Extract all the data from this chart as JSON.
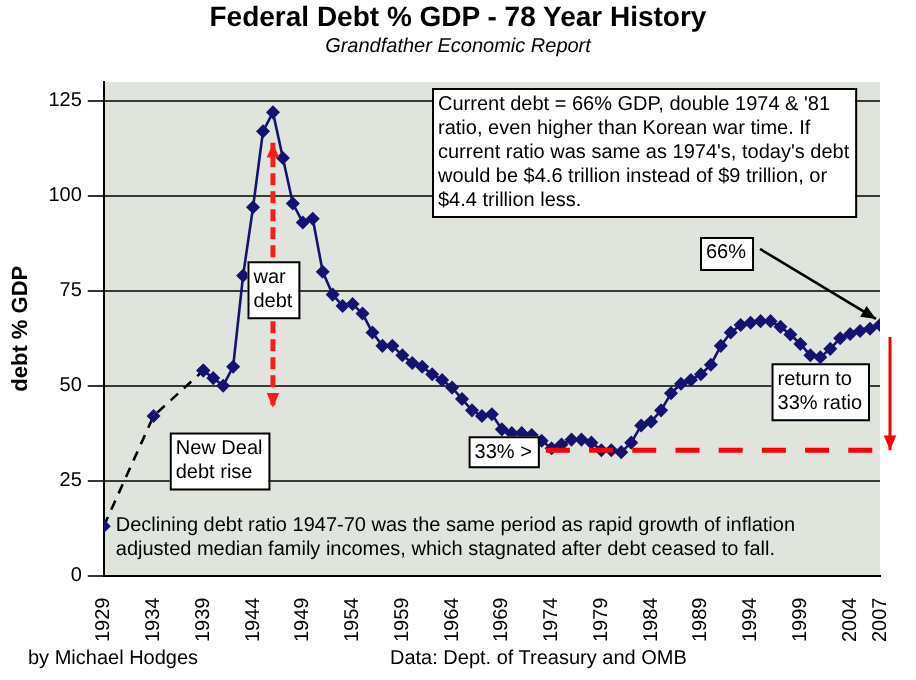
{
  "chart_data": {
    "type": "line",
    "title": "Federal Debt % GDP - 78 Year History",
    "subtitle": "Grandfather Economic Report",
    "ylabel": "debt % GDP",
    "series": [
      {
        "color": "#000000",
        "line_style": "dashed",
        "x": [
          1929,
          1934,
          1939
        ],
        "values": [
          13,
          42,
          54
        ]
      },
      {
        "color": "#14146e",
        "x": [
          1939,
          1940,
          1941,
          1942,
          1943,
          1944,
          1945,
          1946,
          1947,
          1948,
          1949,
          1950,
          1951,
          1952,
          1953,
          1954,
          1955,
          1956,
          1957,
          1958,
          1959,
          1960,
          1961,
          1962,
          1963,
          1964,
          1965,
          1966,
          1967,
          1968,
          1969,
          1970,
          1971,
          1972,
          1973,
          1974,
          1975,
          1976,
          1977,
          1978,
          1979,
          1980,
          1981,
          1982,
          1983,
          1984,
          1985,
          1986,
          1987,
          1988,
          1989,
          1990,
          1991,
          1992,
          1993,
          1994,
          1995,
          1996,
          1997,
          1998,
          1999,
          2000,
          2001,
          2002,
          2003,
          2004,
          2005,
          2006,
          2007
        ],
        "values": [
          54,
          52,
          50,
          55,
          79,
          97,
          117,
          122,
          110,
          98,
          93,
          94,
          80,
          74,
          71,
          71.5,
          69,
          64,
          60.5,
          60.5,
          58,
          56,
          55,
          53,
          51.5,
          49.5,
          46.5,
          43.5,
          42,
          42.5,
          38.5,
          37.5,
          37.5,
          37,
          35.5,
          33.5,
          34.5,
          35.8,
          35.8,
          35,
          33,
          33,
          32.5,
          35,
          39.5,
          40.5,
          43.5,
          48,
          50.5,
          51.5,
          53,
          55.5,
          60.5,
          64,
          66,
          66.6,
          67,
          67,
          65.5,
          63.5,
          61,
          58,
          57.5,
          59.7,
          62.5,
          63.6,
          64.4,
          65,
          66
        ]
      }
    ],
    "xlim": [
      1929,
      2007
    ],
    "xticks": [
      1929,
      1934,
      1939,
      1944,
      1949,
      1954,
      1959,
      1964,
      1969,
      1974,
      1979,
      1984,
      1989,
      1994,
      1999,
      2004,
      2007
    ],
    "ylim": [
      0,
      130
    ],
    "yticks": [
      0,
      25,
      50,
      75,
      100,
      125
    ],
    "grid": "y",
    "marker": "diamond",
    "legend": false,
    "ref_lines": [
      {
        "axis": "y",
        "value": 33,
        "label": "33% >",
        "color": "#ff0000",
        "line_style": "dashed"
      }
    ],
    "annotations": [
      "Current debt = 66% GDP, double 1974 & '81 ratio, even higher than Korean war time. If current ratio was same as 1974's, today's debt would be $4.6 trillion instead of $9 trillion, or $4.4 trillion less.",
      "Declining debt ratio 1947-70 was the same period as rapid growth of inflation adjusted median family incomes, which stagnated after debt ceased to fall.",
      "by Michael Hodges",
      "Data: Dept. of Treasury and OMB",
      "New Deal debt rise",
      "return to 33% ratio",
      {
        "text": "war debt",
        "x": 1946,
        "y": 114
      },
      {
        "text": "66%",
        "x": 2007,
        "y": 66
      }
    ]
  }
}
